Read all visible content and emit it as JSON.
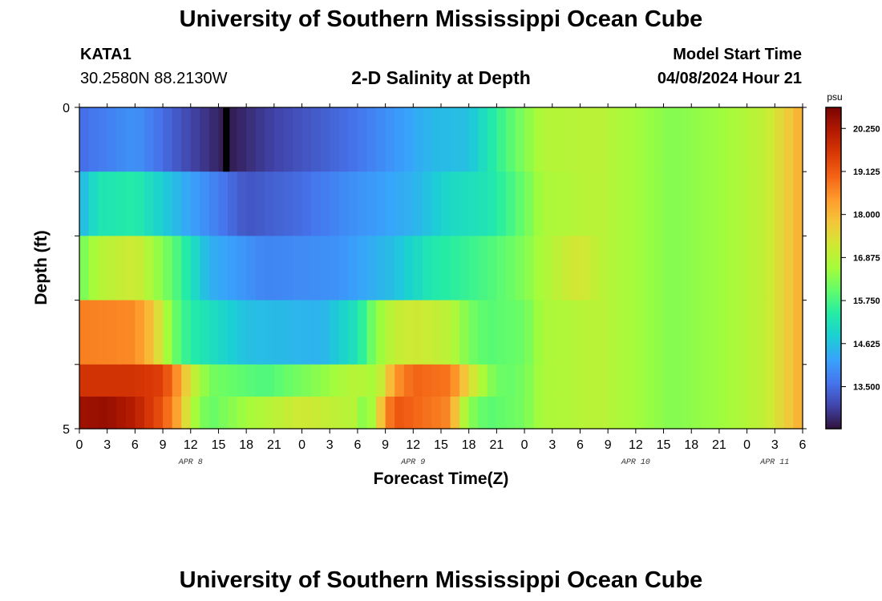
{
  "header": {
    "title": "University of Southern Mississippi Ocean Cube",
    "station": "KATA1",
    "coordinates": "30.2580N  88.2130W",
    "subtitle": "2-D Salinity at Depth",
    "model_start_label": "Model Start Time",
    "model_start_value": "04/08/2024 Hour 21"
  },
  "footer": {
    "title": "University of Southern Mississippi Ocean Cube"
  },
  "chart_data": {
    "type": "heatmap",
    "title": "2-D Salinity at Depth",
    "xlabel": "Forecast Time(Z)",
    "ylabel": "Depth (ft)",
    "x_tick_labels": [
      "0",
      "3",
      "6",
      "9",
      "12",
      "15",
      "18",
      "21",
      "0",
      "3",
      "6",
      "9",
      "12",
      "15",
      "18",
      "21",
      "0",
      "3",
      "6",
      "9",
      "12",
      "15",
      "18",
      "21",
      "0",
      "3",
      "6"
    ],
    "x_hour_ticks": [
      0,
      3,
      6,
      9,
      12,
      15,
      18,
      21,
      24,
      27,
      30,
      33,
      36,
      39,
      42,
      45,
      48,
      51,
      54,
      57,
      60,
      63,
      66,
      69,
      72,
      75,
      78
    ],
    "x_range_hours": [
      0,
      78
    ],
    "day_labels": [
      {
        "label": "APR 8",
        "hour": 12
      },
      {
        "label": "APR 9",
        "hour": 36
      },
      {
        "label": "APR 10",
        "hour": 60
      },
      {
        "label": "APR 11",
        "hour": 75
      }
    ],
    "y_tick_labels": [
      "0",
      "5"
    ],
    "y_range": [
      0,
      5
    ],
    "colorbar": {
      "unit": "psu",
      "range": [
        12.4,
        20.8
      ],
      "ticks": [
        "20.250",
        "19.125",
        "18.000",
        "16.875",
        "15.750",
        "14.625",
        "13.500"
      ],
      "tick_values": [
        20.25,
        19.125,
        18.0,
        16.875,
        15.75,
        14.625,
        13.5
      ],
      "colors": [
        "#30123b",
        "#4145ab",
        "#4675ed",
        "#39a2fc",
        "#1bcfd4",
        "#24eca6",
        "#61fc6c",
        "#a4fc3b",
        "#d1e834",
        "#f3c63a",
        "#fe9b2d",
        "#f36315",
        "#d93806",
        "#b11901",
        "#7a0402"
      ]
    },
    "depth_layers_ft": [
      0.5,
      1.5,
      2.5,
      3.5,
      4.5
    ],
    "salinity_psu": [
      {
        "depth": 0.5,
        "hours": [
          0,
          6,
          12,
          16,
          20,
          30,
          38,
          42,
          44,
          46,
          48,
          50,
          56,
          60,
          64,
          70,
          74,
          76,
          78
        ],
        "values": [
          13.5,
          14.0,
          13.0,
          12.5,
          12.9,
          13.6,
          14.5,
          14.6,
          15.2,
          15.8,
          16.3,
          16.8,
          16.9,
          16.6,
          16.3,
          16.6,
          17.0,
          17.6,
          18.2
        ]
      },
      {
        "depth": 1.5,
        "hours": [
          0,
          2,
          6,
          12,
          18,
          24,
          30,
          36,
          40,
          44,
          46,
          48,
          50,
          56,
          60,
          64,
          70,
          74,
          76,
          78
        ],
        "values": [
          14.4,
          15.2,
          15.4,
          14.2,
          13.2,
          13.5,
          14.0,
          14.4,
          15.0,
          15.2,
          15.6,
          16.1,
          16.7,
          16.9,
          16.6,
          16.3,
          16.6,
          17.0,
          17.6,
          18.2
        ]
      },
      {
        "depth": 2.5,
        "hours": [
          0,
          2,
          6,
          10,
          14,
          20,
          28,
          34,
          38,
          42,
          46,
          48,
          50,
          52,
          54,
          56,
          60,
          64,
          70,
          74,
          76,
          78
        ],
        "values": [
          16.1,
          16.8,
          17.2,
          16.0,
          14.4,
          13.8,
          14.0,
          14.6,
          15.3,
          15.6,
          16.0,
          16.3,
          16.7,
          17.0,
          17.3,
          16.9,
          16.6,
          16.3,
          16.6,
          17.0,
          17.6,
          18.2
        ]
      },
      {
        "depth": 3.5,
        "hours": [
          0,
          6,
          8,
          10,
          12,
          18,
          26,
          30,
          32,
          34,
          36,
          40,
          42,
          44,
          48,
          50,
          56,
          60,
          64,
          70,
          74,
          76,
          78
        ],
        "values": [
          18.7,
          18.6,
          17.8,
          16.2,
          15.4,
          14.6,
          14.4,
          15.2,
          16.4,
          17.0,
          17.2,
          16.9,
          16.2,
          15.9,
          16.1,
          16.7,
          16.9,
          16.6,
          16.3,
          16.6,
          17.0,
          17.6,
          18.2
        ]
      },
      {
        "depth": 4.5,
        "hours": [
          0,
          6,
          9,
          11,
          12,
          14,
          20,
          26,
          30,
          32,
          34,
          36,
          40,
          42,
          44,
          46,
          48,
          50,
          56,
          60,
          64,
          70,
          74,
          76,
          78
        ],
        "values": [
          19.7,
          19.7,
          19.5,
          18.2,
          17.2,
          16.2,
          15.8,
          16.4,
          16.9,
          16.6,
          18.4,
          19.0,
          18.8,
          17.5,
          16.4,
          16.0,
          16.2,
          16.7,
          16.9,
          16.6,
          16.3,
          16.6,
          17.0,
          17.6,
          18.2
        ]
      },
      {
        "depth": 5.0,
        "hours": [
          0,
          3,
          6,
          9,
          11,
          12,
          14,
          18,
          24,
          30,
          31,
          33,
          34,
          36,
          40,
          41,
          42,
          44,
          48,
          50,
          56,
          60,
          64,
          70,
          74,
          76,
          78
        ],
        "values": [
          20.4,
          20.5,
          20.1,
          19.2,
          18.0,
          16.8,
          16.0,
          16.6,
          17.2,
          16.8,
          16.0,
          18.4,
          19.2,
          19.0,
          18.6,
          17.2,
          16.4,
          15.9,
          16.2,
          16.7,
          16.9,
          16.6,
          16.3,
          16.6,
          17.0,
          17.6,
          18.2
        ]
      }
    ],
    "missing_data_column_hours": [
      15.5,
      16.2
    ]
  }
}
